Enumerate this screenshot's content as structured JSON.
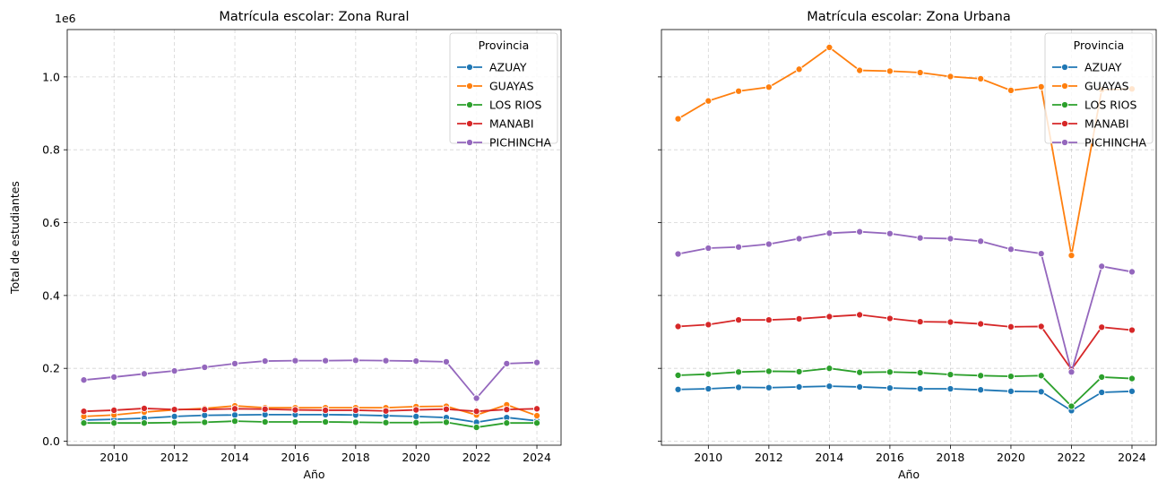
{
  "chart_data": [
    {
      "type": "line",
      "title": "Matrícula escolar: Zona Rural",
      "xlabel": "Año",
      "ylabel": "Total de estudiantes",
      "y_offset_label": "1e6",
      "xlim": [
        2008.45,
        2024.8
      ],
      "ylim": [
        -0.011,
        1.13
      ],
      "x_ticks": [
        2010,
        2012,
        2014,
        2016,
        2018,
        2020,
        2022,
        2024
      ],
      "y_ticks": [
        0.0,
        0.2,
        0.4,
        0.6,
        0.8,
        1.0
      ],
      "y_tick_labels": [
        "0.0",
        "0.2",
        "0.4",
        "0.6",
        "0.8",
        "1.0"
      ],
      "grid": true,
      "legend_title": "Provincia",
      "legend_position": "upper right",
      "x": [
        2009,
        2010,
        2011,
        2012,
        2013,
        2014,
        2015,
        2016,
        2017,
        2018,
        2019,
        2020,
        2021,
        2022,
        2023,
        2024
      ],
      "series": [
        {
          "name": "AZUAY",
          "color": "#1f77b4",
          "values": [
            0.058,
            0.06,
            0.063,
            0.068,
            0.071,
            0.072,
            0.073,
            0.073,
            0.073,
            0.072,
            0.07,
            0.068,
            0.065,
            0.052,
            0.065,
            0.056
          ]
        },
        {
          "name": "GUAYAS",
          "color": "#ff7f0e",
          "values": [
            0.068,
            0.072,
            0.08,
            0.086,
            0.09,
            0.097,
            0.092,
            0.092,
            0.092,
            0.092,
            0.092,
            0.095,
            0.096,
            0.072,
            0.1,
            0.07
          ]
        },
        {
          "name": "LOS RIOS",
          "color": "#2ca02c",
          "values": [
            0.05,
            0.05,
            0.05,
            0.051,
            0.052,
            0.055,
            0.053,
            0.053,
            0.053,
            0.052,
            0.051,
            0.051,
            0.052,
            0.038,
            0.05,
            0.05
          ]
        },
        {
          "name": "MANABI",
          "color": "#d62728",
          "values": [
            0.082,
            0.085,
            0.09,
            0.087,
            0.087,
            0.089,
            0.088,
            0.086,
            0.085,
            0.085,
            0.083,
            0.086,
            0.088,
            0.082,
            0.087,
            0.089
          ]
        },
        {
          "name": "PICHINCHA",
          "color": "#9467bd",
          "values": [
            0.168,
            0.176,
            0.185,
            0.193,
            0.203,
            0.213,
            0.22,
            0.221,
            0.221,
            0.222,
            0.221,
            0.22,
            0.218,
            0.118,
            0.213,
            0.216
          ]
        }
      ]
    },
    {
      "type": "line",
      "title": "Matrícula escolar: Zona Urbana",
      "xlabel": "Año",
      "ylabel": "",
      "xlim": [
        2008.45,
        2024.8
      ],
      "ylim": [
        -0.011,
        1.13
      ],
      "x_ticks": [
        2010,
        2012,
        2014,
        2016,
        2018,
        2020,
        2022,
        2024
      ],
      "shared_y": true,
      "grid": true,
      "legend_title": "Provincia",
      "legend_position": "upper right",
      "x": [
        2009,
        2010,
        2011,
        2012,
        2013,
        2014,
        2015,
        2016,
        2017,
        2018,
        2019,
        2020,
        2021,
        2022,
        2023,
        2024
      ],
      "series": [
        {
          "name": "AZUAY",
          "color": "#1f77b4",
          "values": [
            0.142,
            0.144,
            0.148,
            0.147,
            0.149,
            0.151,
            0.149,
            0.146,
            0.144,
            0.144,
            0.141,
            0.137,
            0.136,
            0.084,
            0.134,
            0.137
          ]
        },
        {
          "name": "GUAYAS",
          "color": "#ff7f0e",
          "values": [
            0.885,
            0.934,
            0.961,
            0.972,
            1.021,
            1.081,
            1.018,
            1.016,
            1.012,
            1.001,
            0.995,
            0.963,
            0.973,
            0.51,
            0.965,
            0.967
          ]
        },
        {
          "name": "LOS RIOS",
          "color": "#2ca02c",
          "values": [
            0.181,
            0.184,
            0.19,
            0.192,
            0.191,
            0.2,
            0.189,
            0.19,
            0.188,
            0.183,
            0.18,
            0.178,
            0.18,
            0.096,
            0.176,
            0.172
          ]
        },
        {
          "name": "MANABI",
          "color": "#d62728",
          "values": [
            0.315,
            0.32,
            0.333,
            0.333,
            0.336,
            0.342,
            0.347,
            0.337,
            0.328,
            0.327,
            0.322,
            0.314,
            0.315,
            0.197,
            0.313,
            0.305
          ]
        },
        {
          "name": "PICHINCHA",
          "color": "#9467bd",
          "values": [
            0.514,
            0.53,
            0.533,
            0.541,
            0.556,
            0.571,
            0.575,
            0.57,
            0.558,
            0.556,
            0.549,
            0.527,
            0.515,
            0.19,
            0.48,
            0.465
          ]
        }
      ]
    }
  ]
}
